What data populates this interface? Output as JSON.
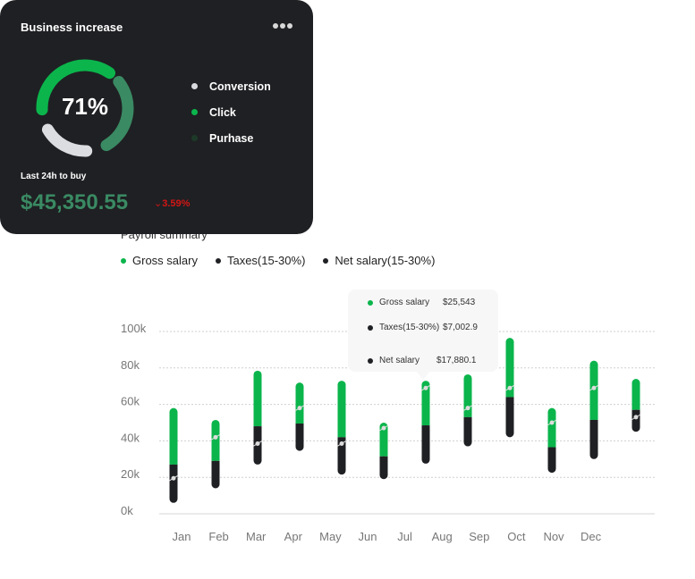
{
  "card": {
    "title": "Business increase",
    "menu_icon": "more-horizontal-icon",
    "percent": "71%",
    "legend": [
      {
        "label": "Conversion",
        "color": "#d9dadd"
      },
      {
        "label": "Click",
        "color": "#0bb54c"
      },
      {
        "label": "Purhase",
        "color": "#1d3a29"
      }
    ],
    "segment_colors": {
      "click": "#0bb54c",
      "purchase": "#3a8a63",
      "conversion": "#dcdde1"
    },
    "last_label": "Last 24h to buy",
    "amount": "$45,350.55",
    "change": "3.59%",
    "change_icon": "chevron-down-icon"
  },
  "chart_data": {
    "type": "bar",
    "title": "Payroll summary",
    "legend": [
      {
        "label": "Gross salary",
        "color": "#0bb54c"
      },
      {
        "label": "Taxes(15-30%)",
        "color": "#1f2023"
      },
      {
        "label": "Net salary(15-30%)",
        "color": "#1f2023"
      }
    ],
    "categories": [
      "Jan",
      "Feb",
      "Mar",
      "Apr",
      "May",
      "Jun",
      "Jul",
      "Aug",
      "Sep",
      "Oct",
      "Nov",
      "Dec"
    ],
    "y_ticks": [
      "0k",
      "20k",
      "40k",
      "60k",
      "80k",
      "100k"
    ],
    "ylim": [
      0,
      100000
    ],
    "grid": true,
    "series": [
      {
        "name": "Gross salary",
        "range_top": [
          58000,
          51500,
          78500,
          72000,
          73000,
          50000,
          73000,
          76500,
          96500,
          58000,
          84000,
          74000
        ],
        "range_bottom": [
          27000,
          29000,
          48000,
          49500,
          42000,
          31500,
          48500,
          53000,
          64000,
          36500,
          51500,
          57000
        ]
      },
      {
        "name": "Taxes(15-30%)",
        "range_top": [
          27000,
          29000,
          48000,
          49500,
          42000,
          31500,
          48500,
          53000,
          64000,
          36500,
          51500,
          57000
        ],
        "range_bottom": [
          6000,
          14000,
          27000,
          34500,
          21500,
          19000,
          27500,
          37000,
          42000,
          22500,
          30000,
          45000
        ]
      },
      {
        "name": "Net salary(15-30%)",
        "values": [
          19500,
          42000,
          38500,
          58000,
          38500,
          47000,
          69000,
          58000,
          69000,
          50000,
          69000,
          53000
        ]
      }
    ],
    "tooltip": {
      "rows": [
        {
          "label": "Gross salary",
          "value": "$25,543",
          "color": "#0bb54c"
        },
        {
          "label": "Taxes(15-30%)",
          "value": "$7,002.9",
          "color": "#1f2023"
        },
        {
          "label": "Net salary",
          "value": "$17,880.1",
          "color": "#1f2023"
        }
      ]
    }
  }
}
